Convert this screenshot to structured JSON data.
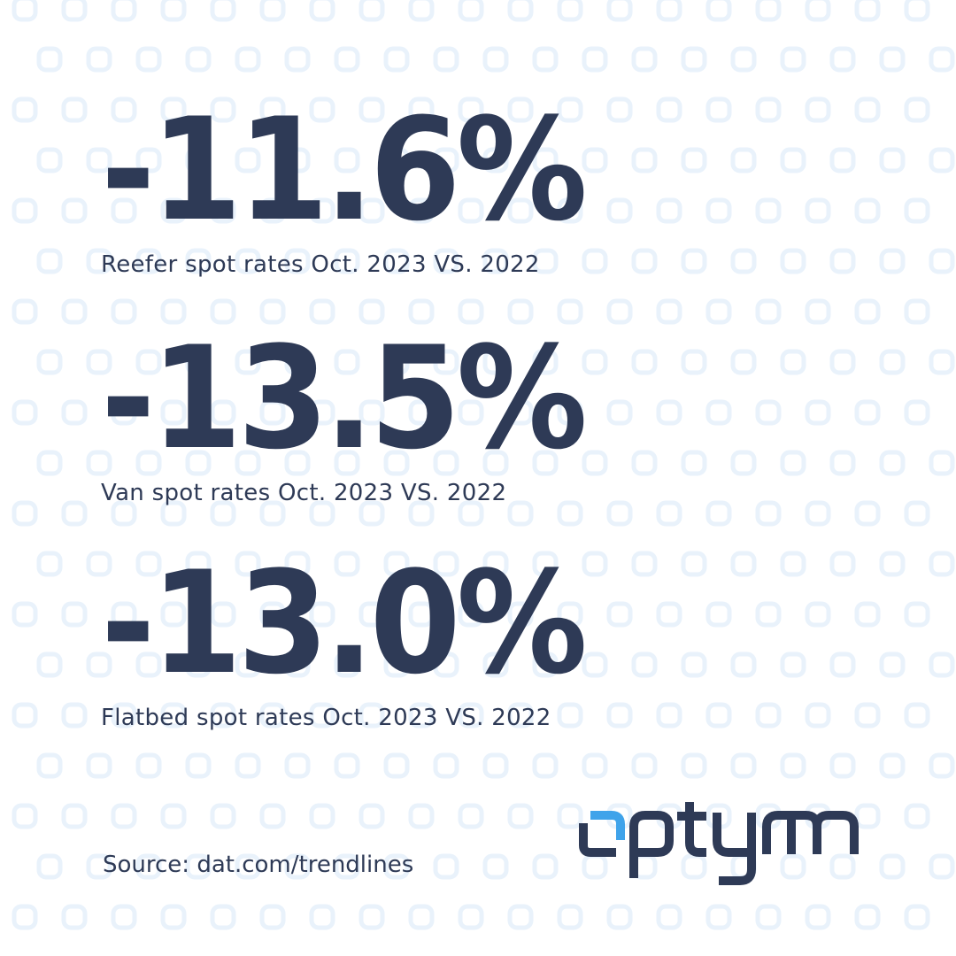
{
  "stats": [
    {
      "value": "-11.6%",
      "label": "Reefer spot rates Oct. 2023 VS. 2022"
    },
    {
      "value": "-13.5%",
      "label": "Van spot rates Oct. 2023 VS. 2022"
    },
    {
      "value": "-13.0%",
      "label": "Flatbed spot rates Oct. 2023 VS. 2022"
    }
  ],
  "source": "Source: dat.com/trendlines",
  "logo": {
    "text": "optym"
  },
  "colors": {
    "text": "#2e3a56",
    "accent": "#3fa3ea",
    "pattern": "#e9f2fb"
  }
}
